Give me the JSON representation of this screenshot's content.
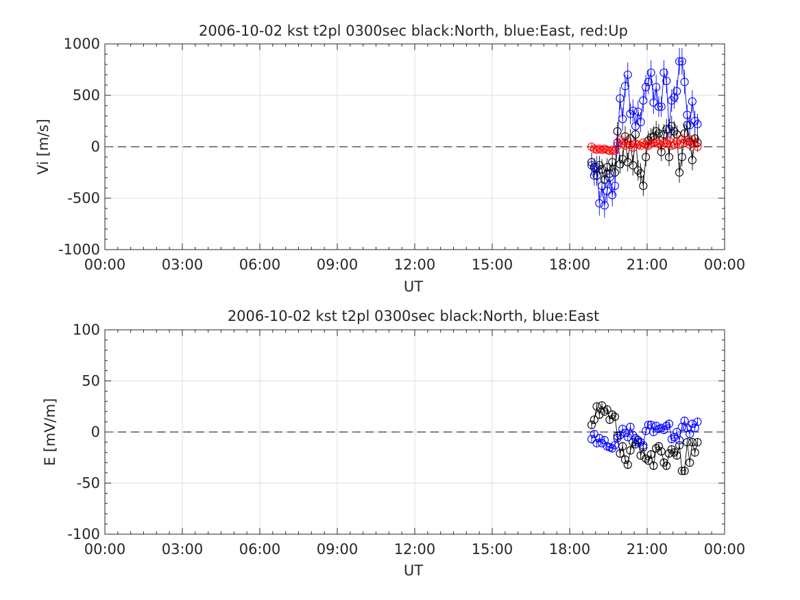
{
  "chart_data": [
    {
      "type": "scatter",
      "title": "2006-10-02 kst t2pl 0300sec black:North, blue:East, red:Up",
      "xlabel": "UT",
      "ylabel": "Vi [m/s]",
      "xlim": [
        0,
        24
      ],
      "ylim": [
        -1000,
        1000
      ],
      "grid": true,
      "x_tick_labels": [
        "00:00",
        "03:00",
        "06:00",
        "09:00",
        "12:00",
        "15:00",
        "18:00",
        "21:00",
        "00:00"
      ],
      "y_tick_labels": [
        "-1000",
        "-500",
        "0",
        "500",
        "1000"
      ],
      "zero_line": 0,
      "error_bars": true,
      "series": [
        {
          "color": "#000000",
          "x": [
            18.85,
            18.95,
            19.05,
            19.15,
            19.25,
            19.35,
            19.45,
            19.55,
            19.65,
            19.75,
            19.85,
            19.95,
            20.05,
            20.15,
            20.25,
            20.35,
            20.45,
            20.55,
            20.65,
            20.75,
            20.85,
            20.95,
            21.05,
            21.15,
            21.25,
            21.35,
            21.45,
            21.55,
            21.65,
            21.75,
            21.85,
            21.95,
            22.05,
            22.15,
            22.25,
            22.35,
            22.45,
            22.55,
            22.65,
            22.75,
            22.85,
            22.95
          ],
          "y": [
            -150,
            -200,
            -280,
            -180,
            -220,
            -320,
            -200,
            -260,
            -150,
            -250,
            150,
            -170,
            -120,
            100,
            -150,
            80,
            -180,
            120,
            -230,
            -260,
            -380,
            -100,
            60,
            90,
            100,
            150,
            130,
            -50,
            120,
            170,
            -100,
            200,
            150,
            120,
            -250,
            -100,
            130,
            210,
            50,
            -130,
            80,
            40
          ],
          "err": [
            90,
            90,
            100,
            90,
            100,
            100,
            90,
            100,
            90,
            100,
            90,
            90,
            90,
            100,
            90,
            90,
            100,
            90,
            100,
            100,
            100,
            90,
            90,
            90,
            100,
            100,
            90,
            90,
            100,
            100,
            90,
            100,
            100,
            90,
            100,
            90,
            90,
            100,
            90,
            100,
            90,
            90
          ]
        },
        {
          "color": "#0000ff",
          "x": [
            18.85,
            18.95,
            19.05,
            19.15,
            19.25,
            19.35,
            19.45,
            19.55,
            19.65,
            19.75,
            19.85,
            19.95,
            20.05,
            20.15,
            20.25,
            20.35,
            20.45,
            20.55,
            20.65,
            20.75,
            20.85,
            20.95,
            21.05,
            21.15,
            21.25,
            21.35,
            21.45,
            21.55,
            21.65,
            21.75,
            21.85,
            21.95,
            22.05,
            22.15,
            22.25,
            22.35,
            22.45,
            22.55,
            22.65,
            22.75,
            22.85,
            22.95
          ],
          "y": [
            -180,
            -280,
            -200,
            -550,
            -380,
            -570,
            -430,
            -300,
            -470,
            -380,
            40,
            470,
            270,
            590,
            700,
            320,
            350,
            200,
            340,
            240,
            450,
            580,
            630,
            720,
            430,
            580,
            390,
            390,
            720,
            640,
            170,
            450,
            480,
            540,
            830,
            830,
            630,
            310,
            210,
            440,
            250,
            220
          ],
          "err": [
            100,
            100,
            110,
            120,
            110,
            120,
            110,
            100,
            110,
            100,
            100,
            110,
            110,
            110,
            120,
            100,
            110,
            100,
            110,
            100,
            110,
            120,
            120,
            120,
            110,
            120,
            100,
            100,
            120,
            120,
            100,
            110,
            110,
            110,
            130,
            130,
            120,
            100,
            100,
            110,
            100,
            100
          ]
        },
        {
          "color": "#ff0000",
          "x": [
            18.85,
            18.95,
            19.05,
            19.15,
            19.25,
            19.35,
            19.45,
            19.55,
            19.65,
            19.75,
            19.85,
            19.95,
            20.05,
            20.15,
            20.25,
            20.35,
            20.45,
            20.55,
            20.65,
            20.75,
            20.85,
            20.95,
            21.05,
            21.15,
            21.25,
            21.35,
            21.45,
            21.55,
            21.65,
            21.75,
            21.85,
            21.95,
            22.05,
            22.15,
            22.25,
            22.35,
            22.45,
            22.55,
            22.65,
            22.75,
            22.85,
            22.95
          ],
          "y": [
            0,
            -20,
            -30,
            -20,
            -30,
            -20,
            -30,
            -40,
            -30,
            -40,
            10,
            70,
            30,
            10,
            60,
            20,
            -10,
            30,
            20,
            10,
            40,
            20,
            10,
            30,
            40,
            50,
            30,
            10,
            40,
            30,
            60,
            10,
            20,
            50,
            20,
            80,
            40,
            60,
            20,
            70,
            30,
            0
          ],
          "err": [
            30,
            30,
            30,
            30,
            30,
            30,
            30,
            30,
            30,
            30,
            30,
            30,
            30,
            30,
            30,
            30,
            30,
            30,
            30,
            30,
            30,
            30,
            30,
            30,
            30,
            30,
            30,
            30,
            30,
            30,
            30,
            30,
            30,
            30,
            30,
            30,
            30,
            30,
            30,
            30,
            30,
            30
          ]
        }
      ]
    },
    {
      "type": "scatter",
      "title": "2006-10-02 kst t2pl 0300sec black:North, blue:East",
      "xlabel": "UT",
      "ylabel": "E [mV/m]",
      "xlim": [
        0,
        24
      ],
      "ylim": [
        -100,
        100
      ],
      "grid": true,
      "x_tick_labels": [
        "00:00",
        "03:00",
        "06:00",
        "09:00",
        "12:00",
        "15:00",
        "18:00",
        "21:00",
        "00:00"
      ],
      "y_tick_labels": [
        "-100",
        "-50",
        "0",
        "50",
        "100"
      ],
      "zero_line": 0,
      "series": [
        {
          "color": "#000000",
          "x": [
            18.85,
            18.95,
            19.05,
            19.15,
            19.25,
            19.35,
            19.45,
            19.55,
            19.65,
            19.75,
            19.85,
            19.95,
            20.05,
            20.15,
            20.25,
            20.35,
            20.45,
            20.55,
            20.65,
            20.75,
            20.85,
            20.95,
            21.05,
            21.15,
            21.25,
            21.35,
            21.45,
            21.55,
            21.65,
            21.75,
            21.85,
            21.95,
            22.05,
            22.15,
            22.25,
            22.35,
            22.45,
            22.55,
            22.65,
            22.75,
            22.85,
            22.95
          ],
          "y": [
            7,
            12,
            25,
            17,
            26,
            20,
            22,
            12,
            17,
            15,
            -4,
            -21,
            -14,
            -27,
            -32,
            -18,
            -10,
            -12,
            -8,
            -23,
            -15,
            -26,
            -28,
            -22,
            -33,
            -16,
            -14,
            -19,
            -30,
            -33,
            -21,
            -17,
            -20,
            -23,
            -13,
            -38,
            -38,
            -10,
            -30,
            -10,
            -20,
            -10
          ],
          "err": [
            4,
            4,
            4,
            4,
            4,
            4,
            4,
            4,
            4,
            4,
            4,
            4,
            4,
            4,
            4,
            4,
            4,
            4,
            4,
            4,
            4,
            4,
            4,
            4,
            4,
            4,
            4,
            4,
            4,
            4,
            4,
            4,
            4,
            4,
            4,
            4,
            4,
            4,
            4,
            4,
            4,
            4
          ]
        },
        {
          "color": "#0000ff",
          "x": [
            18.85,
            18.95,
            19.05,
            19.15,
            19.25,
            19.35,
            19.45,
            19.55,
            19.65,
            19.75,
            19.85,
            19.95,
            20.05,
            20.15,
            20.25,
            20.35,
            20.45,
            20.55,
            20.65,
            20.75,
            20.85,
            20.95,
            21.05,
            21.15,
            21.25,
            21.35,
            21.45,
            21.55,
            21.65,
            21.75,
            21.85,
            21.95,
            22.05,
            22.15,
            22.25,
            22.35,
            22.45,
            22.55,
            22.65,
            22.75,
            22.85,
            22.95
          ],
          "y": [
            -7,
            -2,
            -11,
            -6,
            -11,
            -8,
            -14,
            -15,
            -16,
            -13,
            -6,
            -3,
            3,
            -1,
            -5,
            5,
            -3,
            -6,
            -10,
            -10,
            -13,
            1,
            7,
            7,
            0,
            6,
            3,
            4,
            2,
            6,
            8,
            -7,
            -5,
            0,
            -8,
            5,
            11,
            4,
            -2,
            8,
            4,
            10
          ],
          "err": [
            4,
            4,
            4,
            4,
            4,
            4,
            4,
            4,
            4,
            4,
            4,
            4,
            4,
            4,
            4,
            4,
            4,
            4,
            4,
            4,
            4,
            4,
            4,
            4,
            4,
            4,
            4,
            4,
            4,
            4,
            4,
            4,
            4,
            4,
            4,
            4,
            4,
            4,
            4,
            4,
            4,
            4
          ]
        }
      ]
    }
  ]
}
